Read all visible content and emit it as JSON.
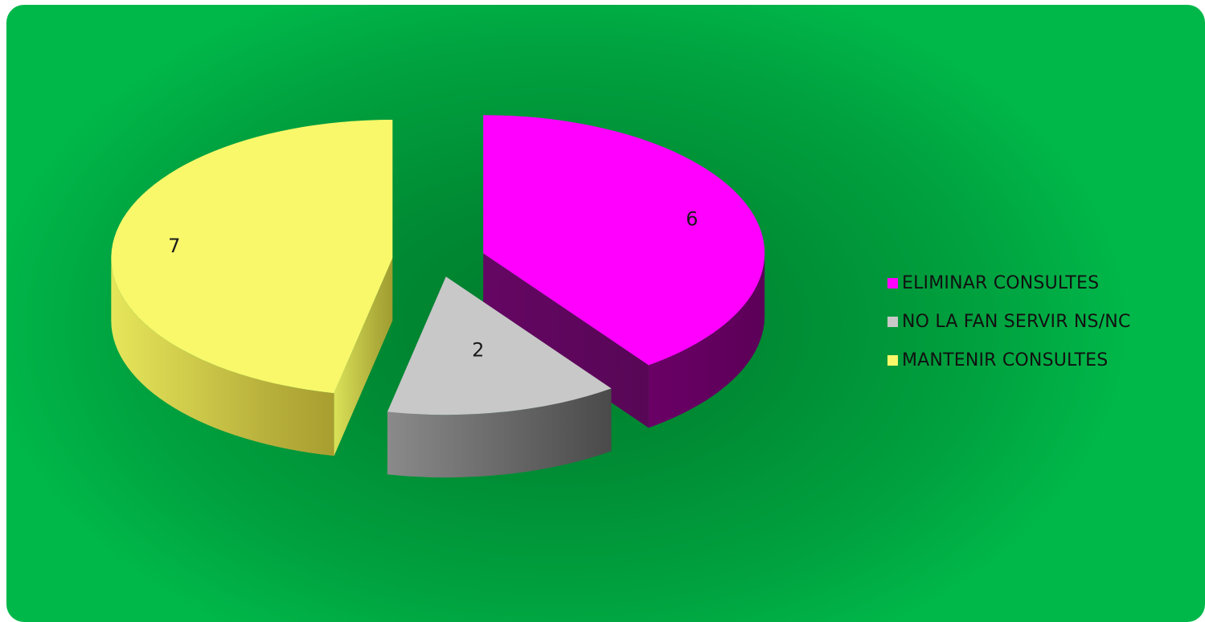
{
  "chart_data": {
    "type": "pie",
    "categories": [
      "ELIMINAR CONSULTES",
      "NO LA FAN SERVIR NS/NC",
      "MANTENIR CONSULTES"
    ],
    "values": [
      6,
      2,
      7
    ],
    "data_labels": [
      "6",
      "2",
      "7"
    ],
    "colors": [
      "#ff00ff",
      "#c8c8c8",
      "#f8f86a"
    ],
    "legend_position": "right",
    "style": "3d-exploded"
  },
  "legend": {
    "items": [
      {
        "label": "ELIMINAR CONSULTES",
        "color": "#ff00ff"
      },
      {
        "label": "NO LA FAN SERVIR NS/NC",
        "color": "#c8c8c8"
      },
      {
        "label": "MANTENIR CONSULTES",
        "color": "#f8f86a"
      }
    ]
  }
}
